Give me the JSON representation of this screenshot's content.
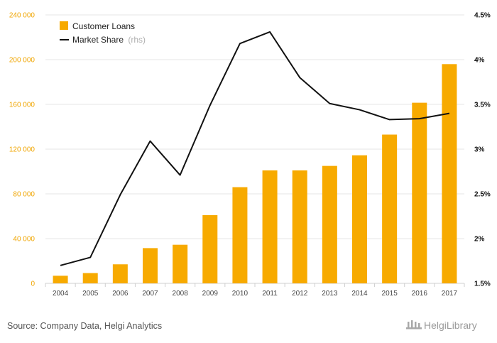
{
  "chart_data": {
    "type": "bar",
    "categories": [
      "2004",
      "2005",
      "2006",
      "2007",
      "2008",
      "2009",
      "2010",
      "2011",
      "2012",
      "2013",
      "2014",
      "2015",
      "2016",
      "2017"
    ],
    "series": [
      {
        "name": "Customer Loans",
        "type": "bar",
        "axis": "left",
        "color": "#f7aa00",
        "values": [
          6800,
          9200,
          17000,
          31500,
          34500,
          61000,
          86000,
          101000,
          101000,
          105000,
          114500,
          133000,
          161500,
          196000
        ]
      },
      {
        "name": "Market Share",
        "name_suffix": "(rhs)",
        "type": "line",
        "axis": "right",
        "color": "#111111",
        "values": [
          1.7,
          1.79,
          2.49,
          3.09,
          2.71,
          3.49,
          4.18,
          4.31,
          3.8,
          3.51,
          3.44,
          3.33,
          3.34,
          3.4
        ]
      }
    ],
    "ylim_left": [
      0,
      240000
    ],
    "yticks_left": [
      "0",
      "40 000",
      "80 000",
      "120 000",
      "160 000",
      "200 000",
      "240 000"
    ],
    "ylim_right": [
      1.5,
      4.5
    ],
    "yticks_right": [
      "1.5%",
      "2%",
      "2.5%",
      "3%",
      "3.5%",
      "4%",
      "4.5%"
    ],
    "grid": true,
    "legend_position": "top-left"
  },
  "footer": {
    "source": "Source: Company Data, Helgi Analytics",
    "brand": "HelgiLibrary"
  }
}
